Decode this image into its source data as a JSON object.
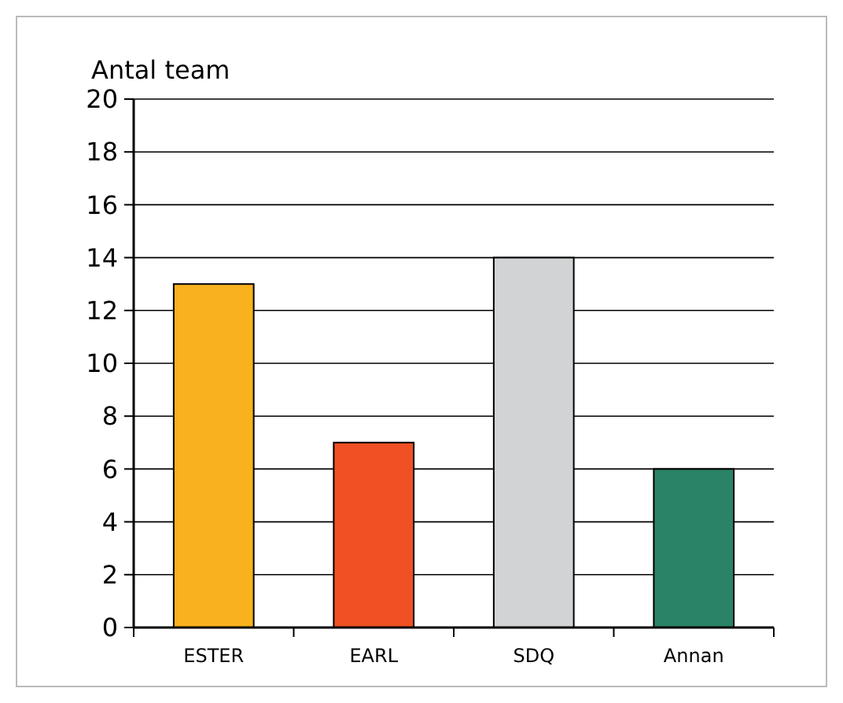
{
  "chart_data": {
    "type": "bar",
    "ylabel": "Antal team",
    "categories": [
      "ESTER",
      "EARL",
      "SDQ",
      "Annan"
    ],
    "values": [
      13,
      7,
      14,
      6
    ],
    "colors": [
      "#f9b21d",
      "#f05023",
      "#d1d3d4",
      "#2a8267"
    ],
    "ylim": [
      0,
      20
    ],
    "yticks": [
      0,
      2,
      4,
      6,
      8,
      10,
      12,
      14,
      16,
      18,
      20
    ],
    "grid": "y"
  }
}
